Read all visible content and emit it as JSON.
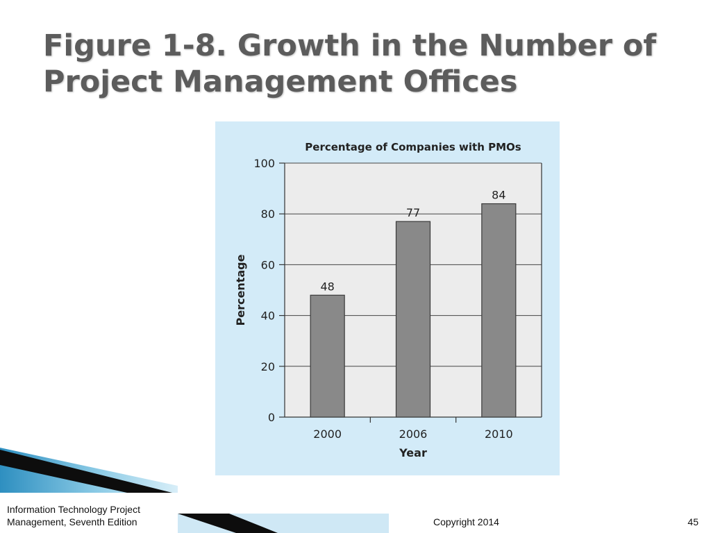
{
  "slide": {
    "title_lines": [
      "Figure 1-8. Growth in the Number of",
      "Project Management Offices"
    ]
  },
  "colors": {
    "panel_background": "#d3ebf8",
    "plot_background": "#ececec",
    "bar_fill": "#898989",
    "title_text": "#5c5c5c",
    "decor_blue": "#2e8fc0",
    "decor_dark": "#0d0d0d"
  },
  "chart_data": {
    "type": "bar",
    "title": "Percentage of Companies with PMOs",
    "xlabel": "Year",
    "ylabel": "Percentage",
    "categories": [
      "2000",
      "2006",
      "2010"
    ],
    "values": [
      48,
      77,
      84
    ],
    "data_labels": [
      "48",
      "77",
      "84"
    ],
    "ylim": [
      0,
      100
    ],
    "yticks": [
      0,
      20,
      40,
      60,
      80,
      100
    ],
    "ytick_labels": [
      "0",
      "20",
      "40",
      "60",
      "80",
      "100"
    ],
    "grid": true,
    "legend": "none"
  },
  "footer": {
    "book_title_lines": [
      "Information Technology Project",
      "Management, Seventh Edition"
    ],
    "copyright": "Copyright 2014",
    "page_number": "45"
  }
}
